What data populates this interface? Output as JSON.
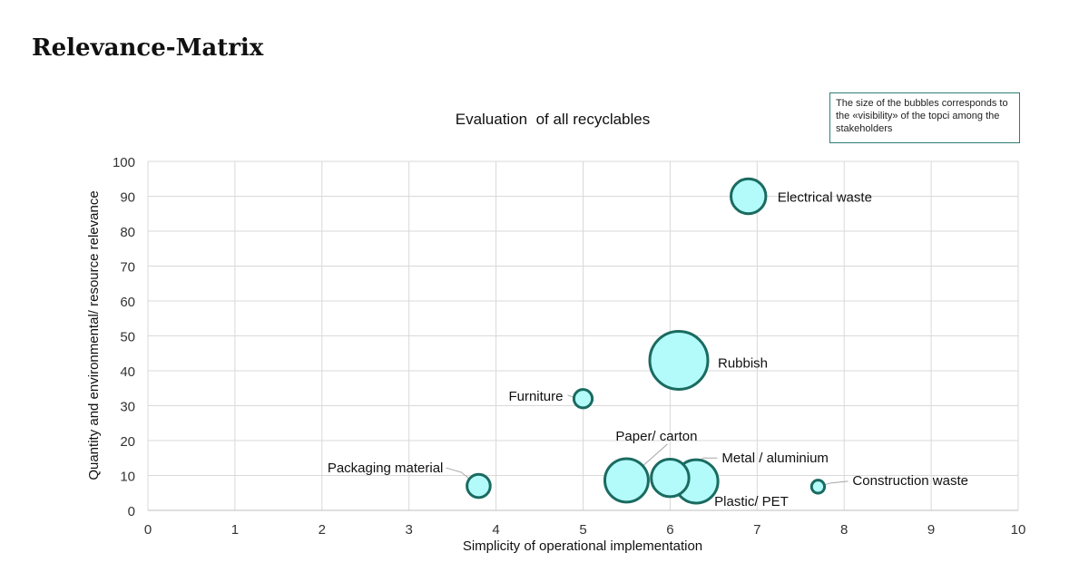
{
  "page_title": "Relevance-Matrix",
  "note": "The size of the bubbles corresponds to the «visibility» of the topci among the stakeholders",
  "colors": {
    "bubble_fill": "#b3fbfb",
    "bubble_stroke": "#1a6b60",
    "grid": "#d9d9d9",
    "note_border": "#2e7d73"
  },
  "chart_data": {
    "type": "scatter",
    "subtype": "bubble",
    "title": "Evaluation  of all recyclables",
    "xlabel": "Simplicity of operational implementation",
    "ylabel": "Quantity and environmental/ resource relevance",
    "xlim": [
      0,
      10
    ],
    "ylim": [
      0,
      100
    ],
    "xticks": [
      "0",
      "1",
      "2",
      "3",
      "4",
      "5",
      "6",
      "7",
      "8",
      "9",
      "10"
    ],
    "yticks": [
      "0",
      "10",
      "20",
      "30",
      "40",
      "50",
      "60",
      "70",
      "80",
      "90",
      "100"
    ],
    "grid": true,
    "points": [
      {
        "label": "Electrical waste",
        "x": 6.9,
        "y": 90,
        "size": 36
      },
      {
        "label": "Rubbish",
        "x": 6.1,
        "y": 43,
        "size": 100
      },
      {
        "label": "Furniture",
        "x": 5.0,
        "y": 32,
        "size": 10
      },
      {
        "label": "Packaging material",
        "x": 3.8,
        "y": 7,
        "size": 16
      },
      {
        "label": "Plastic/ PET",
        "x": 6.3,
        "y": 8.3,
        "size": 56
      },
      {
        "label": "Paper/ carton",
        "x": 5.5,
        "y": 8.6,
        "size": 56
      },
      {
        "label": "Metal / aluminium",
        "x": 6.0,
        "y": 9.3,
        "size": 42
      },
      {
        "label": "Construction waste",
        "x": 7.7,
        "y": 6.8,
        "size": 5
      }
    ]
  }
}
